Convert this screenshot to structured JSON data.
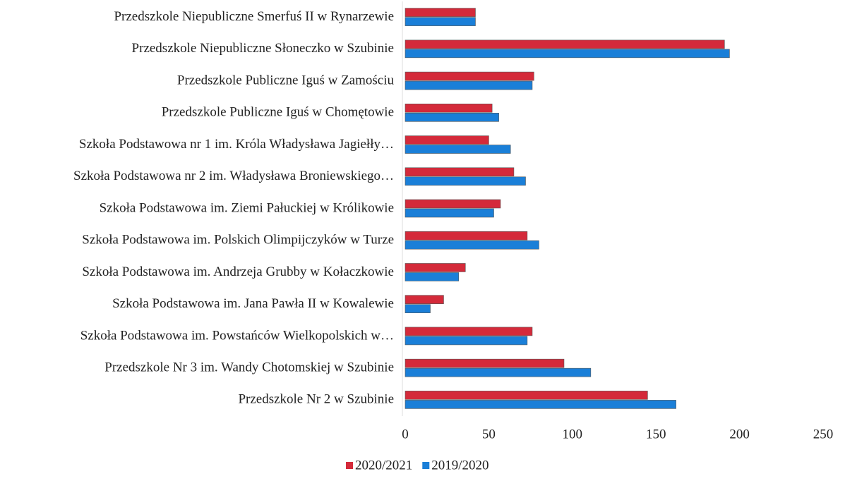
{
  "chart_data": {
    "type": "hbar",
    "categories": [
      "Przedszkole Niepubliczne Smerfuś II w Rynarzewie",
      "Przedszkole Niepubliczne Słoneczko w Szubinie",
      "Przedszkole Publiczne Iguś w Zamościu",
      "Przedszkole Publiczne Iguś w Chomętowie",
      "Szkoła Podstawowa nr 1 im. Króla Władysława Jagiełły…",
      "Szkoła Podstawowa nr 2 im. Władysława Broniewskiego…",
      "Szkoła Podstawowa im. Ziemi Pałuckiej w Królikowie",
      "Szkoła Podstawowa im. Polskich Olimpijczyków  w Turze",
      "Szkoła Podstawowa im. Andrzeja Grubby w Kołaczkowie",
      "Szkoła Podstawowa im. Jana Pawła II w Kowalewie",
      "Szkoła Podstawowa im. Powstańców Wielkopolskich w…",
      "Przedszkole Nr 3 im. Wandy Chotomskiej w Szubinie",
      "Przedszkole Nr 2 w Szubinie"
    ],
    "series": [
      {
        "name": "2020/2021",
        "color": "#d42a3a",
        "values": [
          42,
          191,
          77,
          52,
          50,
          65,
          57,
          73,
          36,
          23,
          76,
          95,
          145
        ]
      },
      {
        "name": "2019/2020",
        "color": "#1a7fd8",
        "values": [
          42,
          194,
          76,
          56,
          63,
          72,
          53,
          80,
          32,
          15,
          73,
          111,
          162
        ]
      }
    ],
    "xlim": [
      0,
      250
    ],
    "xticks": [
      0,
      50,
      100,
      150,
      200,
      250
    ],
    "grid": false,
    "legend": "bottom"
  }
}
